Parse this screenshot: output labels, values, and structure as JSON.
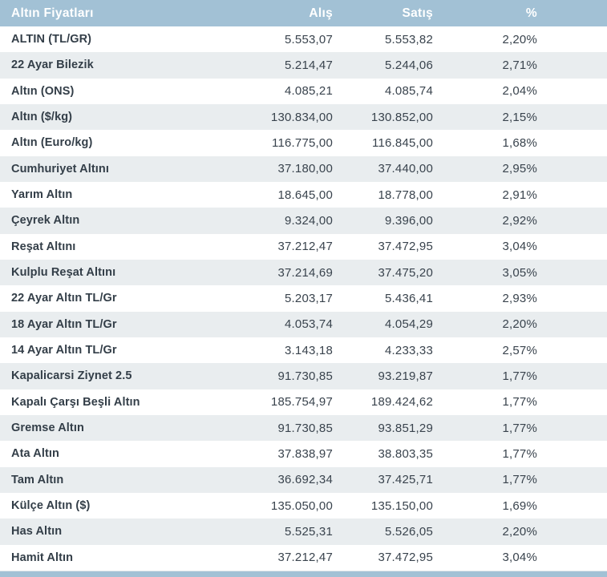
{
  "colors": {
    "header_bg": "#a2c1d5",
    "header_text": "#ffffff",
    "row_bg": "#ffffff",
    "row_alt_bg": "#e9edef",
    "label_text": "#333e48",
    "number_text": "#39434d",
    "footer_bar": "#a2c1d5"
  },
  "chart_data": {
    "type": "table",
    "title": "Altın Fiyatları",
    "columns": [
      "Altın Fiyatları",
      "Alış",
      "Satış",
      "%"
    ],
    "rows": [
      [
        "ALTIN (TL/GR)",
        "5.553,07",
        "5.553,82",
        "2,20%"
      ],
      [
        "22 Ayar Bilezik",
        "5.214,47",
        "5.244,06",
        "2,71%"
      ],
      [
        "Altın (ONS)",
        "4.085,21",
        "4.085,74",
        "2,04%"
      ],
      [
        "Altın ($/kg)",
        "130.834,00",
        "130.852,00",
        "2,15%"
      ],
      [
        "Altın (Euro/kg)",
        "116.775,00",
        "116.845,00",
        "1,68%"
      ],
      [
        "Cumhuriyet Altını",
        "37.180,00",
        "37.440,00",
        "2,95%"
      ],
      [
        "Yarım Altın",
        "18.645,00",
        "18.778,00",
        "2,91%"
      ],
      [
        "Çeyrek Altın",
        "9.324,00",
        "9.396,00",
        "2,92%"
      ],
      [
        "Reşat Altını",
        "37.212,47",
        "37.472,95",
        "3,04%"
      ],
      [
        "Kulplu Reşat Altını",
        "37.214,69",
        "37.475,20",
        "3,05%"
      ],
      [
        "22 Ayar Altın TL/Gr",
        "5.203,17",
        "5.436,41",
        "2,93%"
      ],
      [
        "18 Ayar Altın TL/Gr",
        "4.053,74",
        "4.054,29",
        "2,20%"
      ],
      [
        "14 Ayar Altın TL/Gr",
        "3.143,18",
        "4.233,33",
        "2,57%"
      ],
      [
        "Kapalicarsi Ziynet 2.5",
        "91.730,85",
        "93.219,87",
        "1,77%"
      ],
      [
        "Kapalı Çarşı Beşli Altın",
        "185.754,97",
        "189.424,62",
        "1,77%"
      ],
      [
        "Gremse Altın",
        "91.730,85",
        "93.851,29",
        "1,77%"
      ],
      [
        "Ata Altın",
        "37.838,97",
        "38.803,35",
        "1,77%"
      ],
      [
        "Tam Altın",
        "36.692,34",
        "37.425,71",
        "1,77%"
      ],
      [
        "Külçe Altın ($)",
        "135.050,00",
        "135.150,00",
        "1,69%"
      ],
      [
        "Has Altın",
        "5.525,31",
        "5.526,05",
        "2,20%"
      ],
      [
        "Hamit Altın",
        "37.212,47",
        "37.472,95",
        "3,04%"
      ]
    ]
  }
}
